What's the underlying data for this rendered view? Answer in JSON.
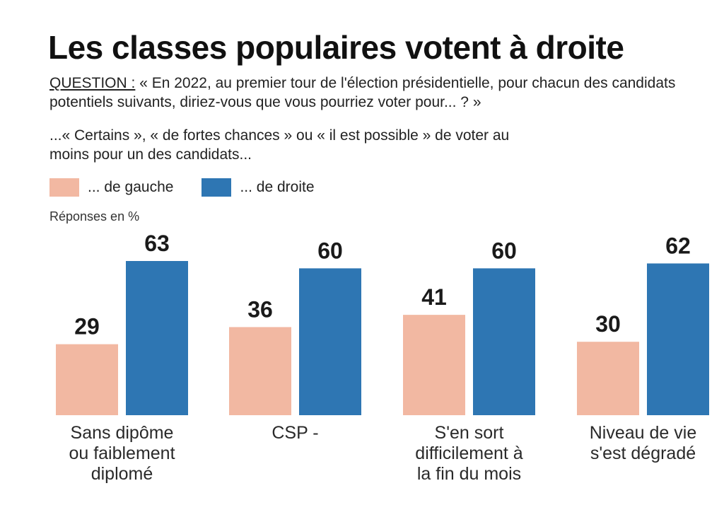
{
  "title": "Les classes populaires votent à droite",
  "question": {
    "label": "QUESTION :",
    "text": " « En 2022, au premier tour de l'élection présidentielle, pour chacun des candidats potentiels suivants, diriez-vous que vous pourriez voter pour... ? »"
  },
  "subtext": "...« Certains », « de fortes chances » ou « il est possible » de voter au moins pour un des candidats...",
  "legend": {
    "gauche": "... de gauche",
    "droite": "... de droite"
  },
  "unit_label": "Réponses en %",
  "colors": {
    "gauche": "#f2b8a2",
    "droite": "#2e76b3",
    "text": "#1a1a1a"
  },
  "chart_data": {
    "type": "bar",
    "categories": [
      [
        "Sans dipôme",
        "ou faiblement",
        "diplomé"
      ],
      [
        "CSP -"
      ],
      [
        "S'en sort",
        "difficilement à",
        "la fin du mois"
      ],
      [
        "Niveau de vie",
        "s'est dégradé"
      ]
    ],
    "series": [
      {
        "name": "... de gauche",
        "values": [
          29,
          36,
          41,
          30
        ]
      },
      {
        "name": "... de droite",
        "values": [
          63,
          60,
          60,
          62
        ]
      }
    ],
    "ylim": [
      0,
      63
    ],
    "grid": false,
    "legend_position": "top-left"
  }
}
